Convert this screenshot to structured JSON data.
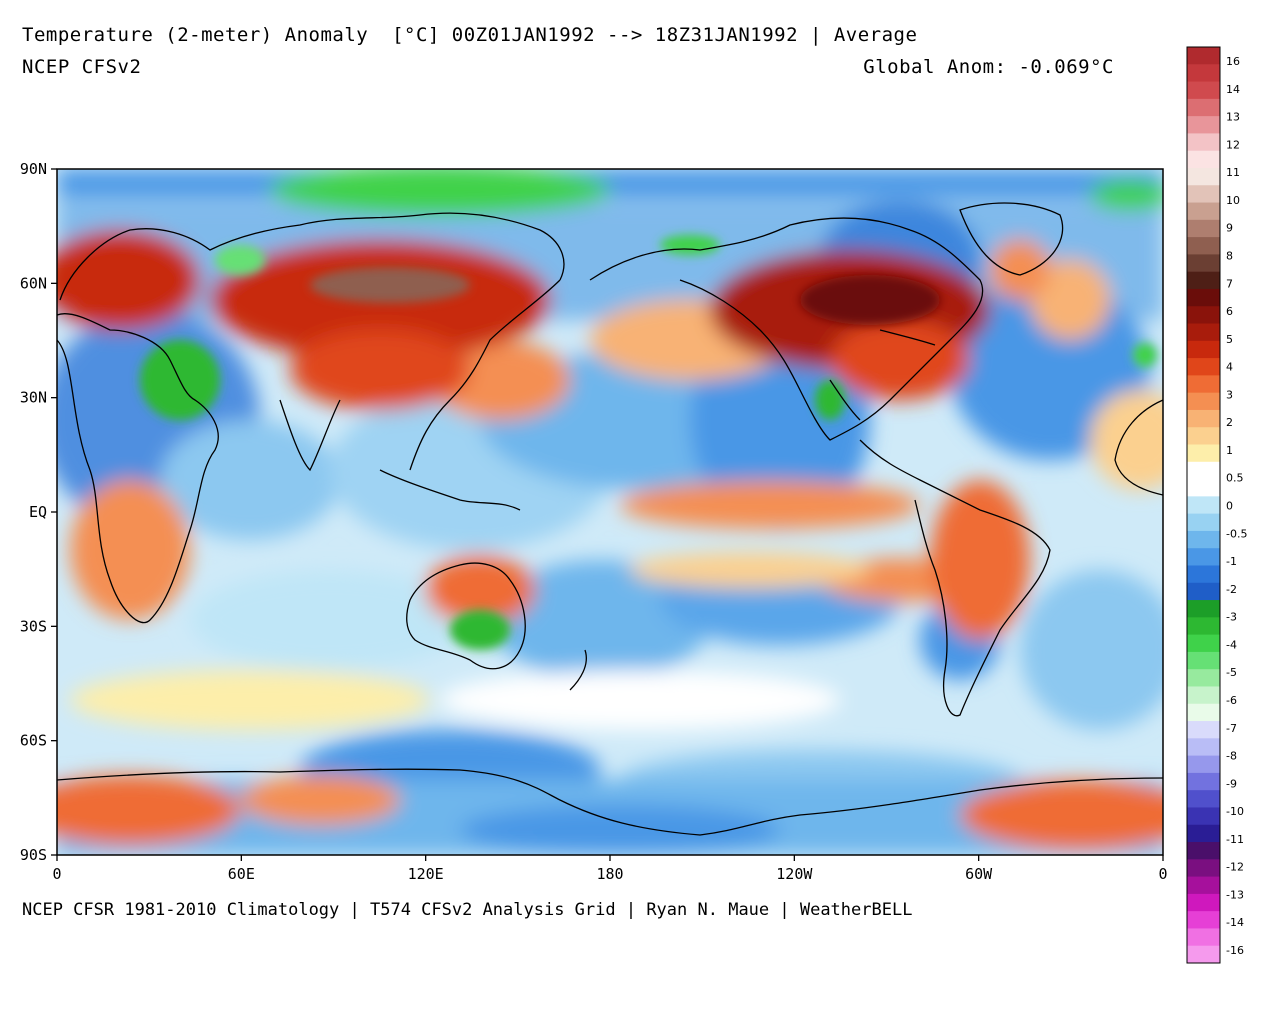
{
  "header": {
    "title": "Temperature (2-meter) Anomaly  [°C] 00Z01JAN1992 --> 18Z31JAN1992 | Average",
    "model": "NCEP CFSv2",
    "global_anom": "Global Anom: -0.069°C"
  },
  "footer": {
    "credits": "NCEP CFSR 1981-2010 Climatology | T574 CFSv2 Analysis Grid | Ryan N. Maue | WeatherBELL"
  },
  "axes": {
    "lat_labels": [
      "90N",
      "60N",
      "30N",
      "EQ",
      "30S",
      "60S",
      "90S"
    ],
    "lon_labels": [
      "0",
      "60E",
      "120E",
      "180",
      "120W",
      "60W",
      "0"
    ]
  },
  "colorbar": {
    "labels": [
      "16",
      "14",
      "13",
      "12",
      "11",
      "10",
      "9",
      "8",
      "7",
      "6",
      "5",
      "4",
      "3",
      "2",
      "1",
      "0.5",
      "0",
      "-0.5",
      "-1",
      "-2",
      "-3",
      "-4",
      "-5",
      "-6",
      "-7",
      "-8",
      "-9",
      "-10",
      "-11",
      "-12",
      "-13",
      "-14",
      "-16"
    ],
    "colors": [
      "#b02a2e",
      "#c4383c",
      "#d04a4e",
      "#dc6e72",
      "#e8959a",
      "#f3c3c6",
      "#fbe3e3",
      "#f4e6e0",
      "#e2c3b8",
      "#c9a090",
      "#ae7e6f",
      "#8f5f50",
      "#6b3f33",
      "#4e1f16",
      "#6a0d0a",
      "#8a130b",
      "#a81c0c",
      "#c8290d",
      "#e0461a",
      "#ef6c35",
      "#f48f52",
      "#f8b274",
      "#fbd08f",
      "#fdeeaa",
      "#ffffff",
      "#ffffff",
      "#bfe6f7",
      "#98d2f2",
      "#6eb6ec",
      "#4a97e6",
      "#2c76da",
      "#1f5ec8",
      "#1c9e28",
      "#2db832",
      "#3fd24a",
      "#66e075",
      "#97ea9e",
      "#c7f3cb",
      "#e9fbe9",
      "#d9dbfb",
      "#b9bdf6",
      "#9698ec",
      "#7272df",
      "#5050cc",
      "#3a33b3",
      "#2a1d95",
      "#4a0f6a",
      "#7a0f80",
      "#a6109c",
      "#cf18bd",
      "#e63fd6",
      "#f070e3",
      "#f59aed"
    ]
  }
}
